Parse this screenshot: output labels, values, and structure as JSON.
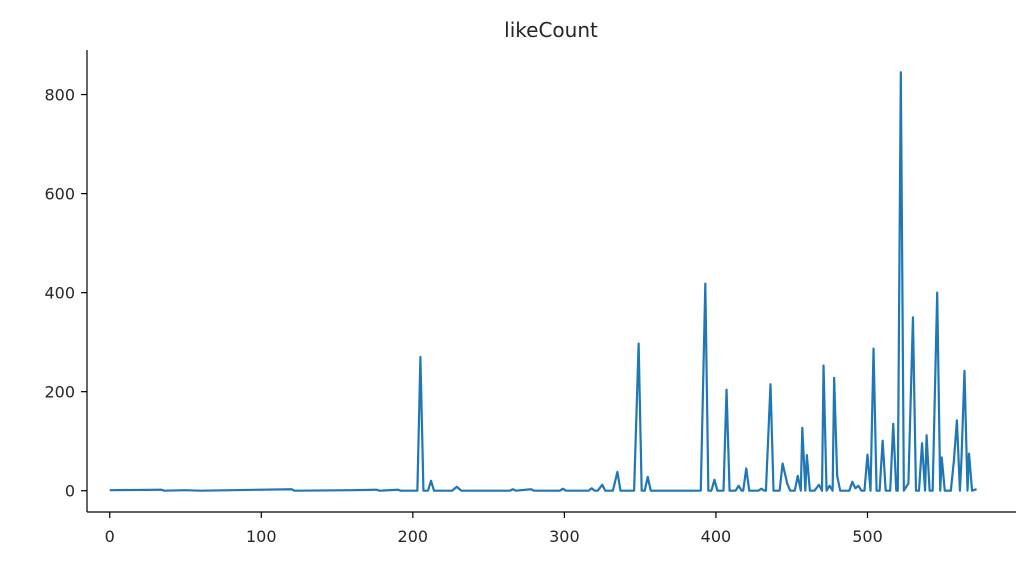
{
  "chart_data": {
    "type": "line",
    "title": "likeCount",
    "xlabel": "",
    "ylabel": "",
    "xlim": [
      -15,
      598
    ],
    "ylim": [
      -43,
      890
    ],
    "xticks": [
      0,
      100,
      200,
      300,
      400,
      500
    ],
    "yticks": [
      0,
      200,
      400,
      600,
      800
    ],
    "grid": false,
    "line_color": "#1f77b4",
    "spines": {
      "top": false,
      "right": false,
      "left": true,
      "bottom": true
    },
    "series": [
      {
        "points": [
          [
            0,
            1
          ],
          [
            34,
            2
          ],
          [
            36,
            0
          ],
          [
            50,
            1
          ],
          [
            60,
            0
          ],
          [
            120,
            3
          ],
          [
            122,
            0
          ],
          [
            160,
            1
          ],
          [
            176,
            2
          ],
          [
            178,
            0
          ],
          [
            190,
            2
          ],
          [
            192,
            0
          ],
          [
            203,
            0
          ],
          [
            205,
            270
          ],
          [
            207,
            0
          ],
          [
            210,
            0
          ],
          [
            212,
            20
          ],
          [
            214,
            0
          ],
          [
            226,
            0
          ],
          [
            229,
            8
          ],
          [
            232,
            0
          ],
          [
            264,
            0
          ],
          [
            266,
            3
          ],
          [
            268,
            0
          ],
          [
            278,
            3
          ],
          [
            280,
            0
          ],
          [
            297,
            0
          ],
          [
            299,
            4
          ],
          [
            301,
            0
          ],
          [
            316,
            0
          ],
          [
            318,
            5
          ],
          [
            320,
            0
          ],
          [
            322,
            0
          ],
          [
            325,
            12
          ],
          [
            327,
            0
          ],
          [
            332,
            0
          ],
          [
            335,
            38
          ],
          [
            337,
            0
          ],
          [
            346,
            0
          ],
          [
            349,
            297
          ],
          [
            351,
            0
          ],
          [
            353,
            0
          ],
          [
            355,
            28
          ],
          [
            357,
            0
          ],
          [
            390,
            0
          ],
          [
            393,
            418
          ],
          [
            395,
            0
          ],
          [
            397,
            0
          ],
          [
            399,
            22
          ],
          [
            401,
            0
          ],
          [
            405,
            0
          ],
          [
            407,
            204
          ],
          [
            409,
            0
          ],
          [
            413,
            0
          ],
          [
            415,
            10
          ],
          [
            417,
            0
          ],
          [
            418,
            0
          ],
          [
            420,
            45
          ],
          [
            422,
            0
          ],
          [
            428,
            0
          ],
          [
            430,
            4
          ],
          [
            432,
            0
          ],
          [
            433,
            0
          ],
          [
            436,
            215
          ],
          [
            438,
            0
          ],
          [
            442,
            0
          ],
          [
            444,
            55
          ],
          [
            447,
            15
          ],
          [
            449,
            0
          ],
          [
            452,
            0
          ],
          [
            454,
            30
          ],
          [
            456,
            0
          ],
          [
            457,
            127
          ],
          [
            459,
            0
          ],
          [
            460,
            72
          ],
          [
            462,
            0
          ],
          [
            465,
            0
          ],
          [
            468,
            12
          ],
          [
            470,
            0
          ],
          [
            471,
            253
          ],
          [
            473,
            0
          ],
          [
            475,
            10
          ],
          [
            477,
            0
          ],
          [
            478,
            228
          ],
          [
            480,
            30
          ],
          [
            482,
            0
          ],
          [
            488,
            0
          ],
          [
            490,
            18
          ],
          [
            492,
            5
          ],
          [
            494,
            10
          ],
          [
            496,
            0
          ],
          [
            498,
            0
          ],
          [
            500,
            73
          ],
          [
            502,
            0
          ],
          [
            504,
            287
          ],
          [
            506,
            0
          ],
          [
            508,
            0
          ],
          [
            510,
            101
          ],
          [
            512,
            0
          ],
          [
            515,
            0
          ],
          [
            517,
            135
          ],
          [
            519,
            0
          ],
          [
            520,
            0
          ],
          [
            522,
            845
          ],
          [
            524,
            0
          ],
          [
            527,
            15
          ],
          [
            530,
            350
          ],
          [
            532,
            0
          ],
          [
            534,
            0
          ],
          [
            536,
            96
          ],
          [
            538,
            0
          ],
          [
            539,
            112
          ],
          [
            541,
            0
          ],
          [
            543,
            0
          ],
          [
            546,
            400
          ],
          [
            548,
            0
          ],
          [
            549,
            67
          ],
          [
            551,
            0
          ],
          [
            555,
            0
          ],
          [
            557,
            60
          ],
          [
            559,
            142
          ],
          [
            561,
            0
          ],
          [
            562,
            62
          ],
          [
            564,
            242
          ],
          [
            566,
            0
          ],
          [
            567,
            75
          ],
          [
            569,
            0
          ],
          [
            572,
            3
          ]
        ]
      }
    ]
  }
}
